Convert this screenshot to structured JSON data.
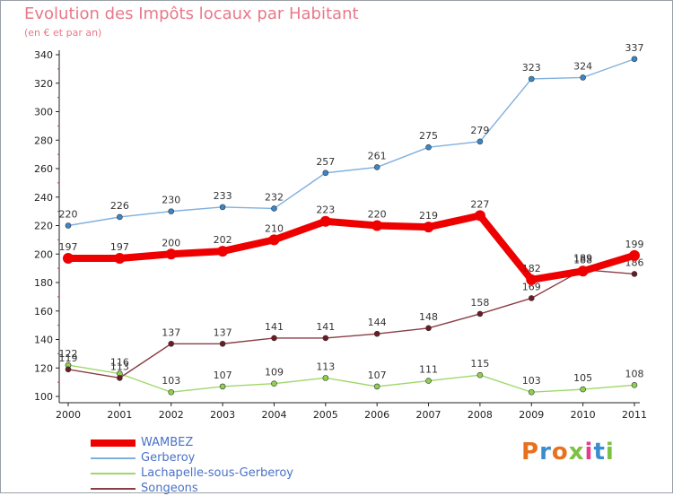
{
  "header": {
    "title": "Evolution des Impôts locaux par Habitant",
    "subtitle": "(en € et par an)"
  },
  "logo": {
    "text": "Proxiti",
    "colors": [
      "#e8711e",
      "#3a8dcf",
      "#e8711e",
      "#7cc142",
      "#e63c8c",
      "#3a8dcf",
      "#7cc142"
    ]
  },
  "chart_data": {
    "type": "line",
    "categories": [
      "2000",
      "2001",
      "2002",
      "2003",
      "2004",
      "2005",
      "2006",
      "2007",
      "2008",
      "2009",
      "2010",
      "2011"
    ],
    "ylim": [
      100,
      340
    ],
    "yticks": [
      100,
      120,
      140,
      160,
      180,
      200,
      220,
      240,
      260,
      280,
      300,
      320,
      340
    ],
    "grid": false,
    "legend_position": "bottom-left",
    "series": [
      {
        "name": "Gerberoy",
        "color": "#7fb0dd",
        "marker": "#3a87c8",
        "values": [
          220,
          226,
          230,
          233,
          232,
          257,
          261,
          275,
          279,
          323,
          324,
          337
        ]
      },
      {
        "name": "Lachapelle-sous-Gerberoy",
        "color": "#9fd86a",
        "marker": "#8fd050",
        "values": [
          122,
          116,
          103,
          107,
          109,
          113,
          107,
          111,
          115,
          103,
          105,
          108
        ]
      },
      {
        "name": "Songeons",
        "color": "#8a3d45",
        "marker": "#6d1a24",
        "values": [
          119,
          113,
          137,
          137,
          141,
          141,
          144,
          148,
          158,
          169,
          189,
          186
        ]
      },
      {
        "name": "WAMBEZ",
        "color": "#ee0000",
        "marker": "#ee0000",
        "values": [
          197,
          197,
          200,
          202,
          210,
          223,
          220,
          219,
          227,
          182,
          188,
          199
        ]
      }
    ]
  },
  "legend": [
    {
      "name": "WAMBEZ",
      "color": "#ee0000"
    },
    {
      "name": "Gerberoy",
      "color": "#7fb0dd"
    },
    {
      "name": "Lachapelle-sous-Gerberoy",
      "color": "#9fd86a"
    },
    {
      "name": "Songeons",
      "color": "#8a3d45"
    }
  ]
}
